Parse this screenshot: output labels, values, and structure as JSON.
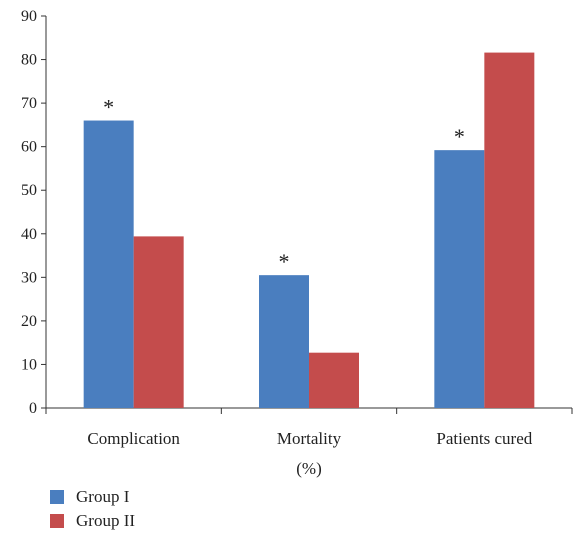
{
  "chart_data": {
    "type": "bar",
    "categories": [
      "Complication",
      "Mortality",
      "Patients cured"
    ],
    "series": [
      {
        "name": "Group I",
        "values": [
          66,
          30.5,
          59.2
        ],
        "color": "#4a7ebf"
      },
      {
        "name": "Group II",
        "values": [
          39.4,
          12.7,
          81.6
        ],
        "color": "#c44c4c"
      }
    ],
    "significance_marks": [
      "*",
      "*",
      "*"
    ],
    "xlabel": "(%)",
    "ylabel": "",
    "ylim": [
      0,
      90
    ],
    "yticks": [
      0,
      10,
      20,
      30,
      40,
      50,
      60,
      70,
      80,
      90
    ],
    "grid": false,
    "legend_position": "bottom-left"
  }
}
